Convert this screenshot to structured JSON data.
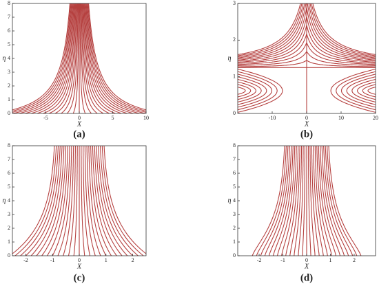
{
  "chart_data": [
    {
      "type": "streamline",
      "label": "(a)",
      "xlabel": "X",
      "ylabel": "η",
      "color": "#b5403f",
      "xlim": [
        -10,
        10
      ],
      "xticks": [
        -5,
        0,
        5,
        10
      ],
      "ylim": [
        0,
        8
      ],
      "yticks": [
        0,
        1,
        2,
        3,
        4,
        5,
        6,
        7,
        8
      ]
    },
    {
      "type": "streamline",
      "label": "(b)",
      "xlabel": "X",
      "ylabel": "η",
      "color": "#b5403f",
      "xlim": [
        -20,
        20
      ],
      "xticks": [
        -10,
        0,
        10,
        20
      ],
      "ylim": [
        0,
        3
      ],
      "yticks": [
        0,
        1,
        2,
        3
      ]
    },
    {
      "type": "streamline",
      "label": "(c)",
      "xlabel": "X",
      "ylabel": "η",
      "color": "#b5403f",
      "xlim": [
        -2.5,
        2.5
      ],
      "xticks": [
        -2,
        -1,
        0,
        1,
        2
      ],
      "ylim": [
        0,
        8
      ],
      "yticks": [
        0,
        1,
        2,
        3,
        4,
        5,
        6,
        7,
        8
      ]
    },
    {
      "type": "streamline",
      "label": "(d)",
      "xlabel": "X",
      "ylabel": "η",
      "color": "#b5403f",
      "xlim": [
        -2.9,
        2.9
      ],
      "xticks": [
        -2,
        -1,
        0,
        1,
        2
      ],
      "ylim": [
        0,
        8
      ],
      "yticks": [
        0,
        1,
        2,
        3,
        4,
        5,
        6,
        7,
        8
      ]
    }
  ]
}
